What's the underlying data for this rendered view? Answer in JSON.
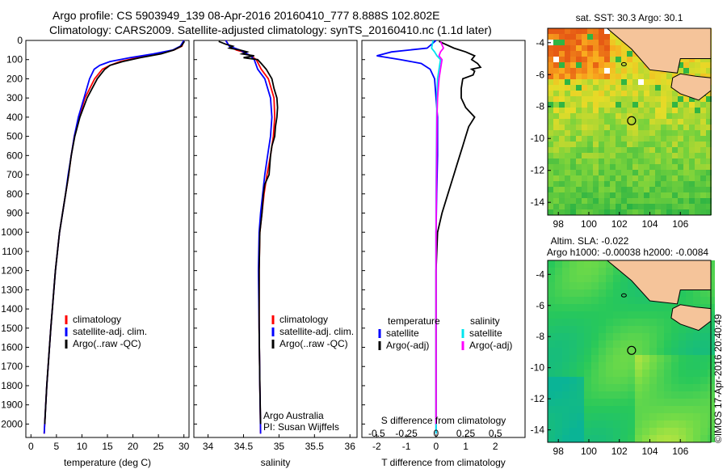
{
  "header": {
    "line1": "Argo profile: CS 5903949_139 08-Apr-2016 20160410_777 8.888S 102.802E",
    "line2": "Climatology: CARS2009. Satellite-adjusted climatology: synTS_20160410.nc (1.1d later)"
  },
  "footer": {
    "credit": "©IMOS 17-Apr-2016 20:40:49",
    "institution": "Argo Australia",
    "pi": "PI: Susan Wijffels"
  },
  "colors": {
    "climatology": "#ff0000",
    "satellite": "#0000ff",
    "argo": "#000000",
    "sal_satellite": "#00e5ee",
    "sal_argo": "#ff00ff",
    "land": "#f5c49a"
  },
  "chart_data": [
    {
      "type": "line",
      "panel": "temperature",
      "xlabel": "temperature (deg C)",
      "ylabel": "",
      "xlim": [
        -1,
        31
      ],
      "ylim": [
        2070,
        0
      ],
      "xticks": [
        0,
        5,
        10,
        15,
        20,
        25,
        30
      ],
      "xtick_labels": [
        "0",
        "5",
        "10",
        "15",
        "20",
        "25",
        "30"
      ],
      "yticks": [
        0,
        100,
        200,
        300,
        400,
        500,
        600,
        700,
        800,
        900,
        1000,
        1100,
        1200,
        1300,
        1400,
        1500,
        1600,
        1700,
        1800,
        1900,
        2000
      ],
      "ytick_labels": [
        "0",
        "100",
        "200",
        "300",
        "400",
        "500",
        "600",
        "700",
        "800",
        "900",
        "1000",
        "1100",
        "1200",
        "1300",
        "1400",
        "1500",
        "1600",
        "1700",
        "1800",
        "1900",
        "2000"
      ],
      "legend": [
        "climatology",
        "satellite-adj. clim.",
        "Argo(..raw -QC)"
      ],
      "series": [
        {
          "name": "climatology",
          "color": "#ff0000",
          "depth": [
            0,
            30,
            50,
            70,
            90,
            110,
            130,
            150,
            200,
            300,
            400,
            500,
            600,
            700,
            800,
            1000,
            1200,
            1500,
            1800,
            2050
          ],
          "values": [
            30.0,
            29.6,
            28.0,
            25.0,
            21.0,
            17.5,
            15.5,
            14.0,
            12.5,
            10.6,
            9.4,
            8.5,
            7.9,
            7.4,
            6.8,
            5.6,
            4.8,
            3.9,
            3.1,
            2.6
          ]
        },
        {
          "name": "satellite-adj. clim.",
          "color": "#0000ff",
          "depth": [
            0,
            30,
            50,
            70,
            90,
            110,
            130,
            150,
            200,
            300,
            400,
            500,
            600,
            700,
            800,
            1000,
            1200,
            1500,
            1800,
            2050
          ],
          "values": [
            30.0,
            29.3,
            27.8,
            24.0,
            19.5,
            15.5,
            13.5,
            12.4,
            11.5,
            10.4,
            9.3,
            8.5,
            7.9,
            7.3,
            6.8,
            5.6,
            4.8,
            3.9,
            3.1,
            2.6
          ]
        },
        {
          "name": "Argo(..raw -QC)",
          "color": "#000000",
          "depth": [
            5,
            30,
            50,
            70,
            90,
            110,
            130,
            150,
            200,
            300,
            400,
            500,
            600,
            700,
            800,
            1000,
            1200,
            1500,
            1800,
            2000
          ],
          "values": [
            30.1,
            29.5,
            28.0,
            25.5,
            21.5,
            18.0,
            15.5,
            14.5,
            13.0,
            11.0,
            9.6,
            8.6,
            7.9,
            7.4,
            6.8,
            5.6,
            4.8,
            3.9,
            3.1,
            2.7
          ]
        }
      ]
    },
    {
      "type": "line",
      "panel": "salinity",
      "xlabel": "salinity",
      "ylabel": "",
      "xlim": [
        33.8,
        36.1
      ],
      "ylim": [
        2070,
        0
      ],
      "xticks": [
        34,
        34.5,
        35,
        35.5,
        36
      ],
      "xtick_labels": [
        "34",
        "34.5",
        "35",
        "35.5",
        "36"
      ],
      "legend": [
        "climatology",
        "satellite-adj. clim.",
        "Argo(..raw -QC)"
      ],
      "series": [
        {
          "name": "climatology",
          "color": "#ff0000",
          "depth": [
            0,
            30,
            50,
            60,
            80,
            100,
            150,
            200,
            300,
            400,
            500,
            600,
            700,
            800,
            900,
            1000,
            1200,
            1500,
            1800,
            2050
          ],
          "values": [
            34.25,
            34.3,
            34.4,
            34.5,
            34.6,
            34.68,
            34.75,
            34.85,
            34.93,
            34.94,
            34.92,
            34.88,
            34.83,
            34.79,
            34.76,
            34.73,
            34.72,
            34.72,
            34.73,
            34.74
          ]
        },
        {
          "name": "satellite-adj. clim.",
          "color": "#0000ff",
          "depth": [
            0,
            30,
            50,
            60,
            80,
            100,
            150,
            200,
            300,
            400,
            500,
            600,
            700,
            800,
            900,
            1000,
            1200,
            1500,
            1800,
            2050
          ],
          "values": [
            34.25,
            34.3,
            34.45,
            34.5,
            34.6,
            34.65,
            34.7,
            34.8,
            34.88,
            34.9,
            34.88,
            34.84,
            34.8,
            34.77,
            34.74,
            34.72,
            34.71,
            34.72,
            34.73,
            34.74
          ]
        },
        {
          "name": "Argo(..raw -QC)",
          "color": "#000000",
          "depth": [
            5,
            20,
            30,
            40,
            50,
            60,
            70,
            80,
            90,
            100,
            120,
            150,
            200,
            250,
            300,
            350,
            400,
            450,
            500,
            550,
            600,
            650,
            700,
            750,
            800,
            900,
            1000,
            1200,
            1500,
            1800,
            2000
          ],
          "values": [
            34.15,
            34.25,
            34.35,
            34.3,
            34.45,
            34.55,
            34.48,
            34.65,
            34.5,
            34.7,
            34.75,
            34.82,
            34.9,
            34.93,
            34.97,
            34.98,
            34.97,
            34.95,
            34.94,
            34.9,
            34.88,
            34.87,
            34.86,
            34.8,
            34.78,
            34.76,
            34.73,
            34.72,
            34.72,
            34.73,
            34.74
          ]
        }
      ]
    },
    {
      "type": "line",
      "panel": "differences",
      "xlabel": "T difference from climatology",
      "x2label": "S difference from climatology",
      "xlim": [
        -2.5,
        3.0
      ],
      "ylim": [
        2070,
        0
      ],
      "xticks": [
        -2,
        -1,
        0,
        1,
        2
      ],
      "xtick_labels": [
        "-2",
        "-1",
        "0",
        "1",
        "2"
      ],
      "x2ticks": [
        -0.5,
        -0.25,
        0,
        0.25,
        0.5
      ],
      "x2tick_labels": [
        "-0.5",
        "-0.25",
        "0",
        "0.25",
        "0.5"
      ],
      "legend_temperature": {
        "title": "temperature",
        "entries": [
          "satellite",
          "Argo(-adj)"
        ]
      },
      "legend_salinity": {
        "title": "salinity",
        "entries": [
          "satellite",
          "Argo(-adj)"
        ]
      },
      "series": [
        {
          "name": "satellite",
          "color": "#0000ff",
          "depth": [
            0,
            40,
            60,
            80,
            100,
            120,
            150,
            200,
            300,
            400,
            600,
            800,
            1000,
            1500,
            2050
          ],
          "values": [
            0.0,
            -0.3,
            -1.5,
            -2.0,
            -1.2,
            -0.5,
            -0.2,
            -0.05,
            0.0,
            0.05,
            0.05,
            0.02,
            0.0,
            0.0,
            0.0
          ]
        },
        {
          "name": "Argo(-adj)",
          "color": "#000000",
          "depth": [
            5,
            40,
            60,
            80,
            100,
            120,
            140,
            150,
            160,
            180,
            200,
            250,
            300,
            350,
            400,
            450,
            500,
            550,
            600,
            650,
            700,
            750,
            800,
            900,
            1000,
            1200,
            1500,
            1800,
            2000
          ],
          "values": [
            0.1,
            0.6,
            1.0,
            1.3,
            1.2,
            1.4,
            1.5,
            1.2,
            1.3,
            1.25,
            0.9,
            0.85,
            0.85,
            1.0,
            1.3,
            1.1,
            1.0,
            0.9,
            0.8,
            0.7,
            0.6,
            0.5,
            0.4,
            0.2,
            0.05,
            0.0,
            0.0,
            0.0,
            0.0
          ]
        },
        {
          "name": "satellite",
          "color": "#00e5ee",
          "depth": [
            0,
            40,
            60,
            80,
            100,
            150,
            200,
            300,
            400,
            600,
            800,
            1000,
            1500,
            2050
          ],
          "values": [
            -0.1,
            -0.15,
            -0.05,
            0.03,
            0.15,
            0.1,
            0.05,
            0.03,
            0.02,
            0.01,
            0.0,
            0.0,
            0.0,
            0.0
          ]
        },
        {
          "name": "Argo(-adj)",
          "color": "#ff00ff",
          "depth": [
            5,
            40,
            60,
            80,
            100,
            150,
            200,
            300,
            400,
            600,
            800,
            1000,
            1500,
            2000
          ],
          "values": [
            0.15,
            0.25,
            0.15,
            0.1,
            0.2,
            0.15,
            0.1,
            0.05,
            0.03,
            0.02,
            0.01,
            0.0,
            0.0,
            0.0
          ]
        }
      ]
    },
    {
      "type": "heatmap",
      "panel": "sst_map",
      "title": "sat. SST: 30.3 Argo: 30.1",
      "xlim": [
        97.3,
        108.0
      ],
      "ylim": [
        -14.8,
        -3.1
      ],
      "xticks": [
        98,
        100,
        102,
        104,
        106
      ],
      "xtick_labels": [
        "98",
        "100",
        "102",
        "104",
        "106"
      ],
      "yticks": [
        -4,
        -6,
        -8,
        -10,
        -12,
        -14
      ],
      "ytick_labels": [
        "-4",
        "-6",
        "-8",
        "-10",
        "-12",
        "-14"
      ],
      "marker": {
        "lon": 102.802,
        "lat": -8.888
      }
    },
    {
      "type": "heatmap",
      "panel": "sla_map",
      "title": "Altim. SLA: -0.022",
      "subtitle": "Argo h1000: -0.00038 h2000: -0.0084",
      "xlim": [
        97.3,
        108.0
      ],
      "ylim": [
        -14.8,
        -3.1
      ],
      "xticks": [
        98,
        100,
        102,
        104,
        106
      ],
      "xtick_labels": [
        "98",
        "100",
        "102",
        "104",
        "106"
      ],
      "yticks": [
        -4,
        -6,
        -8,
        -10,
        -12,
        -14
      ],
      "ytick_labels": [
        "-4",
        "-6",
        "-8",
        "-10",
        "-12",
        "-14"
      ],
      "marker": {
        "lon": 102.802,
        "lat": -8.888
      }
    }
  ]
}
